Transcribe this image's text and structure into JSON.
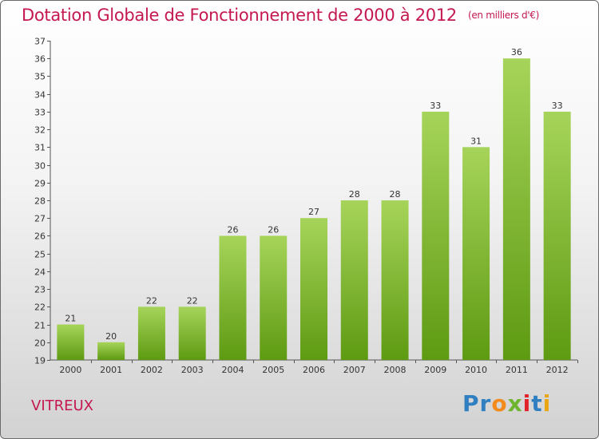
{
  "title": "Dotation Globale de Fonctionnement de 2000 à 2012",
  "unit_label": "(en milliers d'€)",
  "commune": "VITREUX",
  "logo": {
    "letters": [
      "P",
      "r",
      "o",
      "x",
      "i",
      "t",
      "i"
    ],
    "colors": [
      "#2f7fc1",
      "#2f7fc1",
      "#f28a1c",
      "#6cb52d",
      "#e2222a",
      "#2f7fc1",
      "#e9a512"
    ]
  },
  "colors": {
    "bar_top": "#a6d45a",
    "bar_bottom": "#5e9a12",
    "title": "#c4184f"
  },
  "chart_data": {
    "type": "bar",
    "categories": [
      "2000",
      "2001",
      "2002",
      "2003",
      "2004",
      "2005",
      "2006",
      "2007",
      "2008",
      "2009",
      "2010",
      "2011",
      "2012"
    ],
    "values": [
      21,
      20,
      22,
      22,
      26,
      26,
      27,
      28,
      28,
      33,
      31,
      36,
      33
    ],
    "ylim": [
      19,
      37
    ],
    "yticks": [
      19,
      20,
      21,
      22,
      23,
      24,
      25,
      26,
      27,
      28,
      29,
      30,
      31,
      32,
      33,
      34,
      35,
      36,
      37
    ],
    "grid": false,
    "data_labels": true
  }
}
